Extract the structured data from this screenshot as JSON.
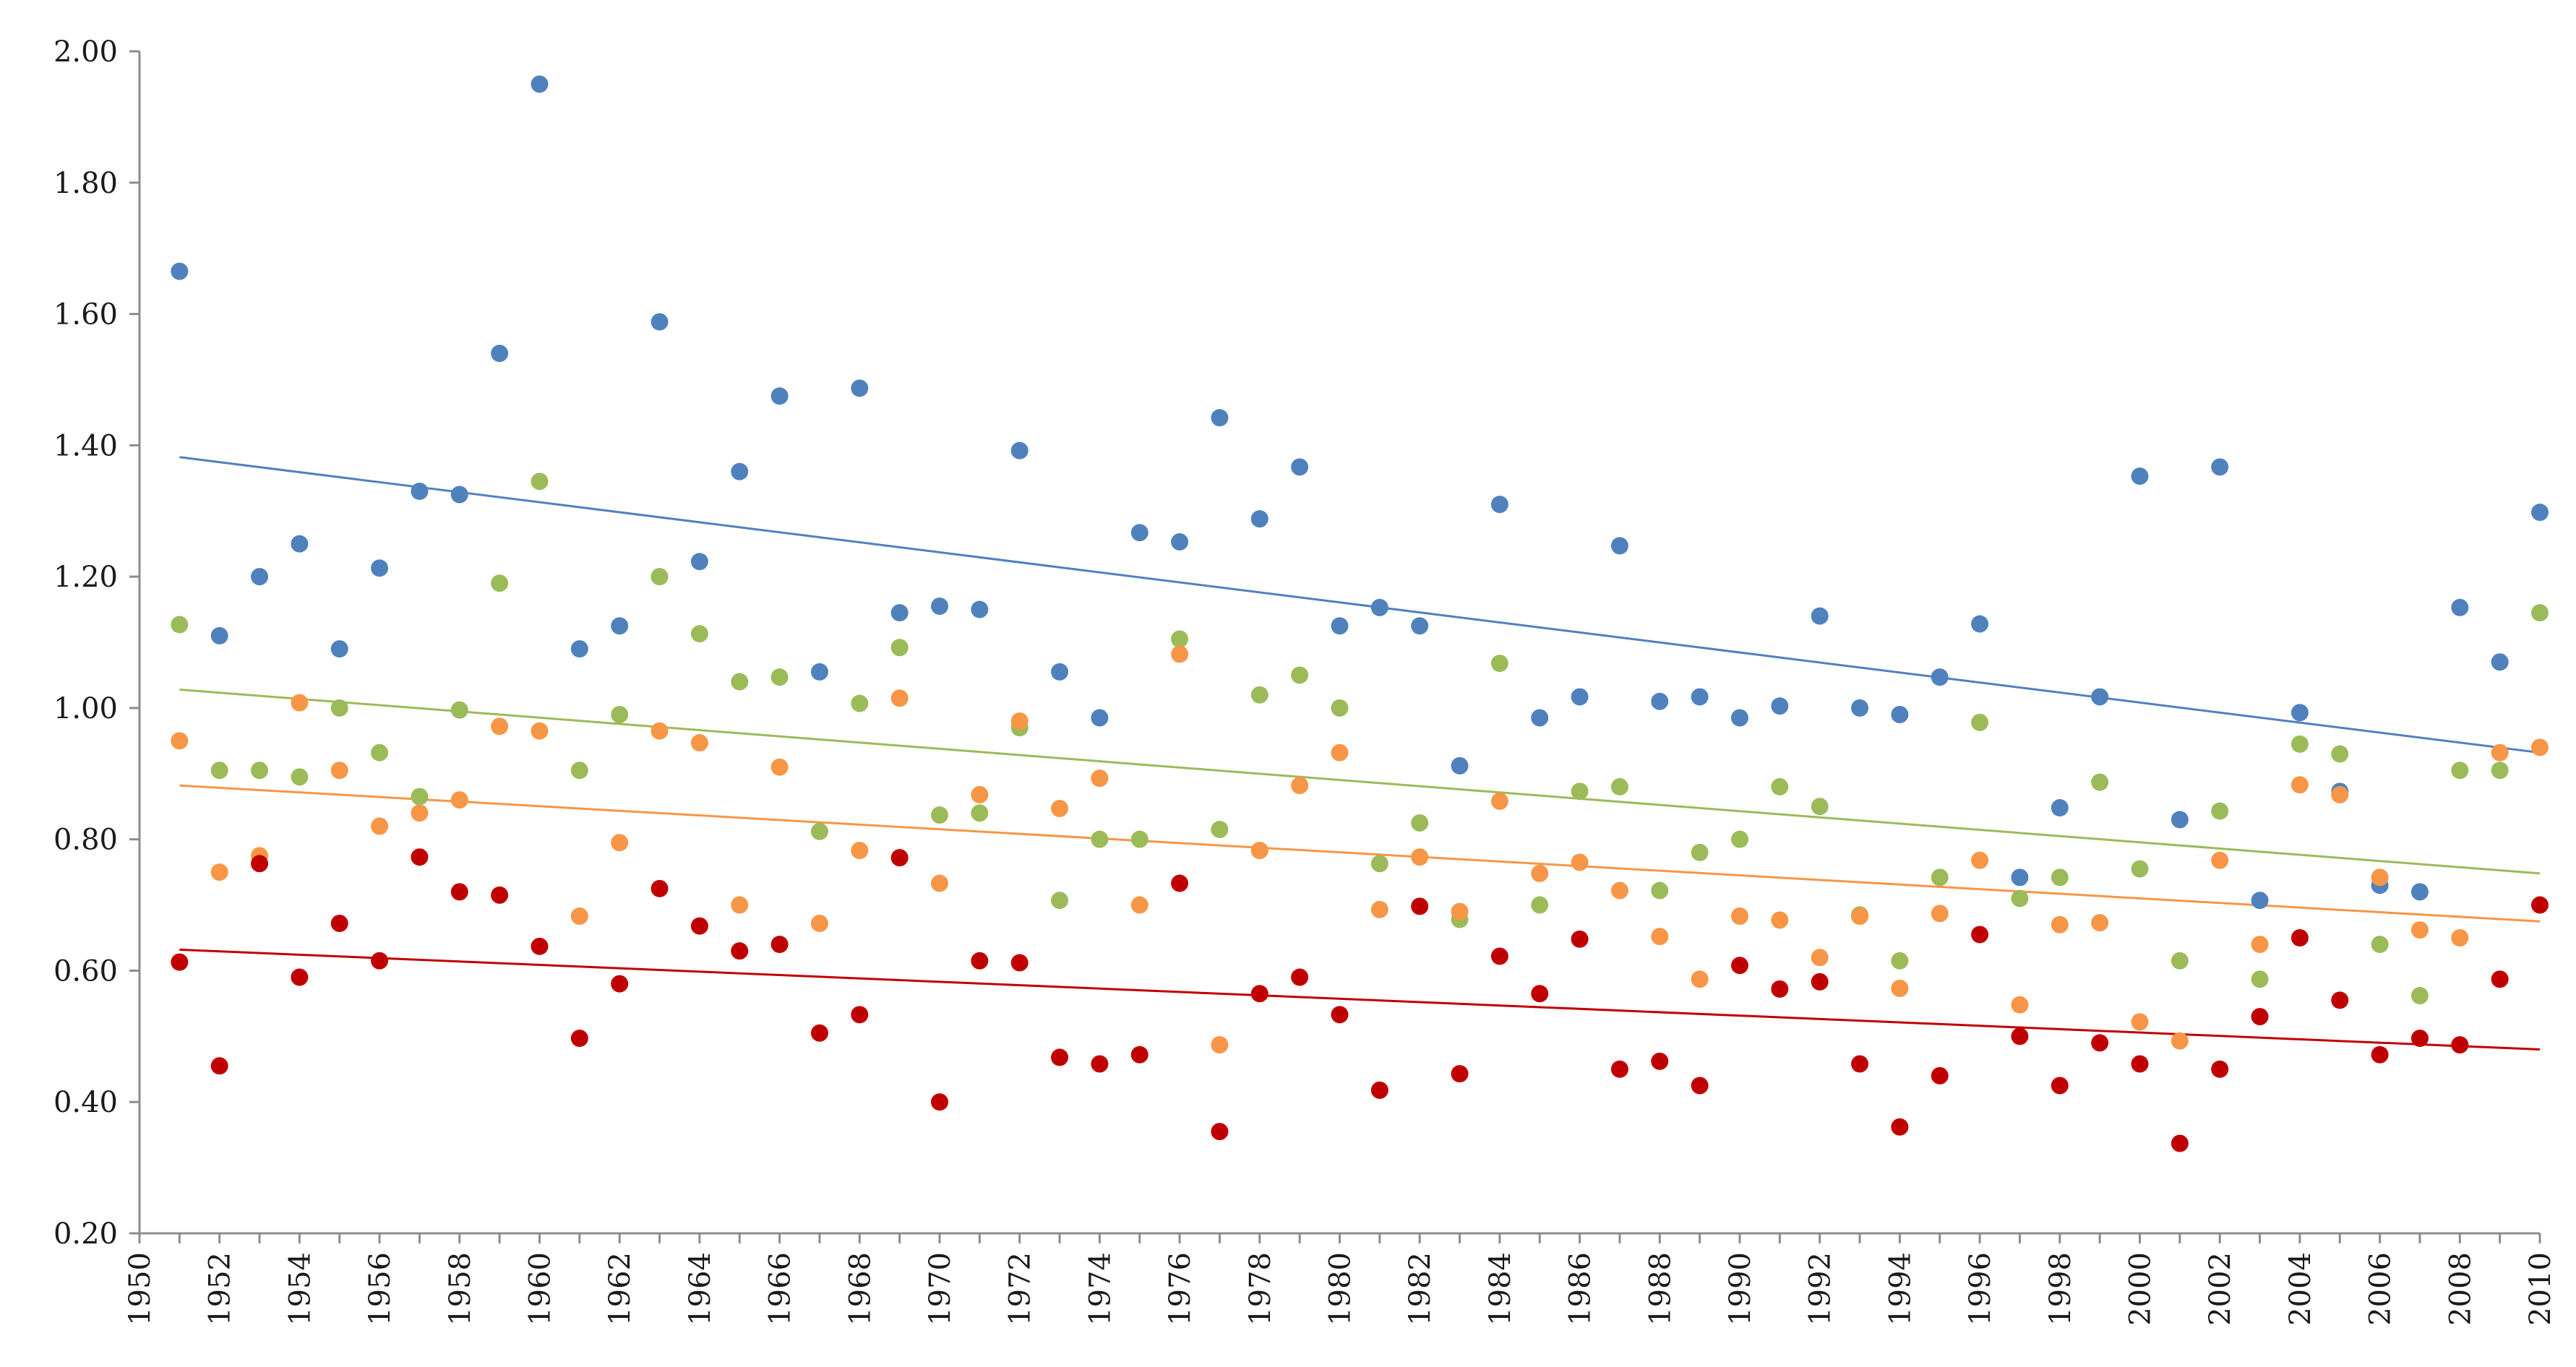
{
  "chart_data": {
    "type": "scatter",
    "title": "",
    "xlabel": "",
    "ylabel": "",
    "xlim": [
      1950,
      2010
    ],
    "ylim": [
      0.2,
      2.0
    ],
    "grid": false,
    "y_ticks": [
      "0.20",
      "0.40",
      "0.60",
      "0.80",
      "1.00",
      "1.20",
      "1.40",
      "1.60",
      "1.80",
      "2.00"
    ],
    "y_tick_values": [
      0.2,
      0.4,
      0.6,
      0.8,
      1.0,
      1.2,
      1.4,
      1.6,
      1.8,
      2.0
    ],
    "x_ticks": [
      "1950",
      "1952",
      "1954",
      "1956",
      "1958",
      "1960",
      "1962",
      "1964",
      "1966",
      "1968",
      "1970",
      "1972",
      "1974",
      "1976",
      "1978",
      "1980",
      "1982",
      "1984",
      "1986",
      "1988",
      "1990",
      "1992",
      "1994",
      "1996",
      "1998",
      "2000",
      "2002",
      "2004",
      "2006",
      "2008",
      "2010"
    ],
    "x": [
      1951,
      1952,
      1953,
      1954,
      1955,
      1956,
      1957,
      1958,
      1959,
      1960,
      1961,
      1962,
      1963,
      1964,
      1965,
      1966,
      1967,
      1968,
      1969,
      1970,
      1971,
      1972,
      1973,
      1974,
      1975,
      1976,
      1977,
      1978,
      1979,
      1980,
      1981,
      1982,
      1983,
      1984,
      1985,
      1986,
      1987,
      1988,
      1989,
      1990,
      1991,
      1992,
      1993,
      1994,
      1995,
      1996,
      1997,
      1998,
      1999,
      2000,
      2001,
      2002,
      2003,
      2004,
      2005,
      2006,
      2007,
      2008,
      2009,
      2010
    ],
    "series": [
      {
        "name": "blue",
        "color": "#4f81bd",
        "values": [
          1.665,
          1.11,
          1.2,
          1.25,
          1.09,
          1.213,
          1.33,
          1.325,
          1.54,
          1.95,
          1.09,
          1.125,
          1.588,
          1.223,
          1.36,
          1.475,
          1.055,
          1.487,
          1.145,
          1.155,
          1.15,
          1.392,
          1.055,
          0.985,
          1.267,
          1.253,
          1.442,
          1.288,
          1.367,
          1.125,
          1.153,
          1.125,
          0.912,
          1.31,
          0.985,
          1.017,
          1.247,
          1.01,
          1.017,
          0.985,
          1.003,
          1.14,
          1.0,
          0.99,
          1.047,
          1.128,
          0.742,
          0.848,
          1.017,
          1.353,
          0.83,
          1.367,
          0.707,
          0.993,
          0.873,
          0.73,
          0.72,
          1.153,
          1.07,
          1.298
        ],
        "trend": [
          1.382,
          0.932
        ]
      },
      {
        "name": "green",
        "color": "#9bbb59",
        "values": [
          1.127,
          0.905,
          0.905,
          0.895,
          1.0,
          0.932,
          0.865,
          0.997,
          1.19,
          1.345,
          0.905,
          0.99,
          1.2,
          1.113,
          1.04,
          1.047,
          0.812,
          1.007,
          1.092,
          0.837,
          0.84,
          0.97,
          0.707,
          0.8,
          0.8,
          1.105,
          0.815,
          1.02,
          1.05,
          1.0,
          0.763,
          0.825,
          0.678,
          1.068,
          0.7,
          0.873,
          0.88,
          0.722,
          0.78,
          0.8,
          0.88,
          0.85,
          0.685,
          0.615,
          0.742,
          0.978,
          0.71,
          0.742,
          0.887,
          0.755,
          0.615,
          0.843,
          0.587,
          0.945,
          0.93,
          0.64,
          0.562,
          0.905,
          0.905,
          1.145
        ],
        "trend": [
          1.028,
          0.748
        ]
      },
      {
        "name": "orange",
        "color": "#f79646",
        "values": [
          0.95,
          0.75,
          0.775,
          1.008,
          0.905,
          0.82,
          0.84,
          0.86,
          0.972,
          0.965,
          0.683,
          0.795,
          0.965,
          0.947,
          0.7,
          0.91,
          0.672,
          0.783,
          1.015,
          0.733,
          0.868,
          0.98,
          0.847,
          0.893,
          0.7,
          1.082,
          0.487,
          0.783,
          0.882,
          0.932,
          0.693,
          0.773,
          0.69,
          0.858,
          0.748,
          0.765,
          0.722,
          0.652,
          0.587,
          0.683,
          0.677,
          0.62,
          0.683,
          0.573,
          0.687,
          0.768,
          0.548,
          0.67,
          0.673,
          0.522,
          0.493,
          0.768,
          0.64,
          0.883,
          0.868,
          0.742,
          0.662,
          0.65,
          0.932,
          0.94
        ],
        "trend": [
          0.882,
          0.675
        ]
      },
      {
        "name": "red",
        "color": "#c00000",
        "values": [
          0.613,
          0.455,
          0.763,
          0.59,
          0.672,
          0.615,
          0.773,
          0.72,
          0.715,
          0.637,
          0.497,
          0.58,
          0.725,
          0.668,
          0.63,
          0.64,
          0.505,
          0.533,
          0.772,
          0.4,
          0.615,
          0.612,
          0.468,
          0.458,
          0.472,
          0.733,
          0.355,
          0.565,
          0.59,
          0.533,
          0.418,
          0.698,
          0.443,
          0.622,
          0.565,
          0.648,
          0.45,
          0.462,
          0.425,
          0.608,
          0.572,
          0.583,
          0.458,
          0.362,
          0.44,
          0.655,
          0.5,
          0.425,
          0.49,
          0.458,
          0.337,
          0.45,
          0.53,
          0.65,
          0.555,
          0.472,
          0.497,
          0.487,
          0.587,
          0.7
        ],
        "trend": [
          0.632,
          0.48
        ]
      }
    ]
  }
}
